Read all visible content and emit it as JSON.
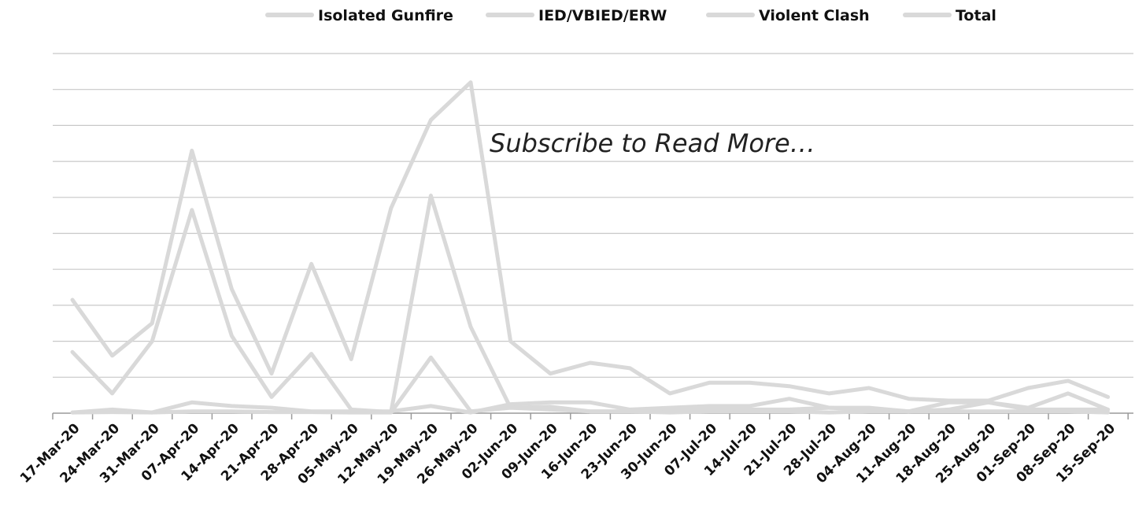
{
  "chart_data": {
    "type": "line",
    "x": [
      "17-Mar-20",
      "24-Mar-20",
      "31-Mar-20",
      "07-Apr-20",
      "14-Apr-20",
      "21-Apr-20",
      "28-Apr-20",
      "05-May-20",
      "12-May-20",
      "19-May-20",
      "26-May-20",
      "02-Jun-20",
      "09-Jun-20",
      "16-Jun-20",
      "23-Jun-20",
      "30-Jun-20",
      "07-Jul-20",
      "14-Jul-20",
      "21-Jul-20",
      "28-Jul-20",
      "04-Aug-20",
      "11-Aug-20",
      "18-Aug-20",
      "25-Aug-20",
      "01-Sep-20",
      "08-Sep-20",
      "15-Sep-20"
    ],
    "series": [
      {
        "name": "Isolated Gunfire",
        "values": [
          17.0,
          5.5,
          20.0,
          56.5,
          21.5,
          4.5,
          16.5,
          1.0,
          0.3,
          60.5,
          24.0,
          1.5,
          1.8,
          0.5,
          0.5,
          0.5,
          1.0,
          1.0,
          1.0,
          1.5,
          1.5,
          0.5,
          1.0,
          3.0,
          1.5,
          5.5,
          1.0
        ]
      },
      {
        "name": "IED/VBIED/ERW",
        "values": [
          0.2,
          0.3,
          0.2,
          0.5,
          0.5,
          0.3,
          0.3,
          0.2,
          0.2,
          15.5,
          0.5,
          1.5,
          1.0,
          0.5,
          0.5,
          0.2,
          0.5,
          0.5,
          0.5,
          0.2,
          0.5,
          0.5,
          0.5,
          0.5,
          0.5,
          0.5,
          0.2
        ]
      },
      {
        "name": "Violent Clash",
        "values": [
          0.2,
          1.0,
          0.2,
          3.0,
          2.0,
          1.5,
          0.5,
          0.5,
          0.5,
          2.0,
          0.2,
          2.5,
          3.0,
          3.0,
          1.0,
          1.5,
          2.0,
          2.0,
          4.0,
          1.5,
          1.0,
          0.5,
          3.0,
          3.0,
          1.0,
          1.0,
          1.0
        ]
      },
      {
        "name": "Total",
        "values": [
          31.5,
          16.0,
          25.0,
          73.0,
          34.5,
          11.0,
          41.5,
          15.0,
          57.0,
          81.5,
          92.0,
          20.0,
          11.0,
          14.0,
          12.5,
          5.5,
          8.5,
          8.5,
          7.5,
          5.5,
          7.0,
          4.0,
          3.5,
          3.5,
          7.0,
          9.0,
          4.5
        ]
      }
    ],
    "colors": [
      "#d9d9d9",
      "#d9d9d9",
      "#d9d9d9",
      "#d9d9d9"
    ],
    "ylim": [
      0,
      100
    ],
    "grid": true,
    "legend_position": "top",
    "title": "",
    "xlabel": "",
    "ylabel": ""
  },
  "overlay": {
    "text": "Subscribe to Read More…"
  }
}
